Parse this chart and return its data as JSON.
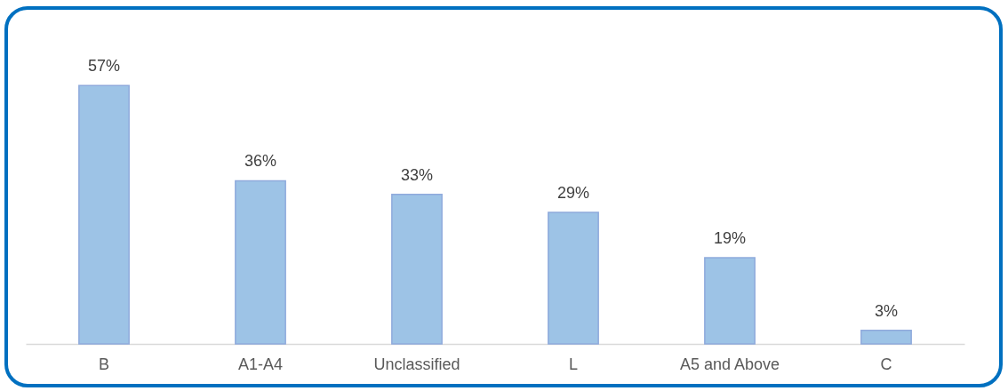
{
  "chart_data": {
    "type": "bar",
    "categories": [
      "B",
      "A1-A4",
      "Unclassified",
      "L",
      "A5 and Above",
      "C"
    ],
    "values": [
      57,
      36,
      33,
      29,
      19,
      3
    ],
    "value_labels": [
      "57%",
      "36%",
      "33%",
      "29%",
      "19%",
      "3%"
    ],
    "color": "#9dc3e6"
  }
}
